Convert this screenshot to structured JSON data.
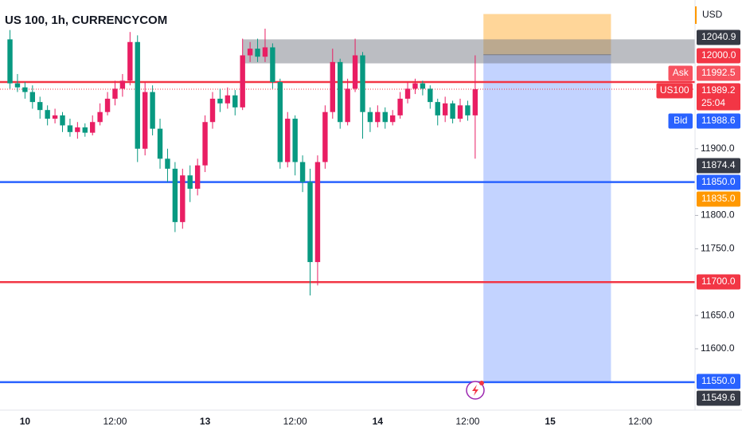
{
  "chart_data": {
    "type": "candlestick",
    "title": "US 100, 1h, CURRENCYCOM",
    "currency": "USD",
    "open": [
      12064,
      11998,
      11992,
      11985,
      11970,
      11958,
      11945,
      11950,
      11935,
      11925,
      11932,
      11924,
      11940,
      11955,
      11975,
      11990,
      12002,
      12060,
      11900,
      11985,
      11930,
      11885,
      11870,
      11790,
      11860,
      11840,
      11875,
      11940,
      11975,
      11968,
      11980,
      11962,
      12040,
      12050,
      12038,
      12052,
      12000,
      11880,
      11945,
      11880,
      11850,
      11730,
      11880,
      11955,
      12030,
      11940,
      11990,
      12040,
      11955,
      11940,
      11955,
      11940,
      11950,
      11975,
      11990,
      11998,
      11990,
      11970,
      11950,
      11968,
      11945,
      11965,
      11950
    ],
    "high": [
      12078,
      12012,
      12000,
      11995,
      11978,
      11965,
      11960,
      11955,
      11945,
      11940,
      11938,
      11950,
      11968,
      11985,
      12002,
      12012,
      12075,
      12070,
      12000,
      11995,
      11945,
      11900,
      11880,
      11870,
      11875,
      11885,
      11950,
      11985,
      11990,
      11992,
      11988,
      12065,
      12060,
      12065,
      12080,
      12058,
      12005,
      11955,
      11950,
      11890,
      11870,
      11890,
      11965,
      12050,
      12035,
      12005,
      12065,
      12045,
      11962,
      11965,
      11962,
      11958,
      11985,
      12000,
      12005,
      12002,
      11995,
      11975,
      11978,
      11972,
      11975,
      11972,
      12040
    ],
    "low": [
      11990,
      11985,
      11975,
      11960,
      11945,
      11935,
      11938,
      11925,
      11918,
      11915,
      11918,
      11920,
      11935,
      11950,
      11965,
      11978,
      11995,
      11880,
      11890,
      11920,
      11870,
      11850,
      11775,
      11780,
      11820,
      11830,
      11865,
      11930,
      11955,
      11960,
      11950,
      11958,
      12030,
      12030,
      12030,
      11990,
      11870,
      11872,
      11860,
      11835,
      11680,
      11695,
      11870,
      11945,
      11930,
      11935,
      11985,
      11915,
      11925,
      11932,
      11930,
      11935,
      11945,
      11968,
      11982,
      11980,
      11960,
      11935,
      11940,
      11938,
      11940,
      11942,
      11885
    ],
    "close": [
      11998,
      11992,
      11985,
      11970,
      11958,
      11945,
      11950,
      11935,
      11925,
      11932,
      11924,
      11940,
      11955,
      11975,
      11990,
      12002,
      12060,
      11900,
      11985,
      11930,
      11885,
      11870,
      11790,
      11860,
      11840,
      11875,
      11940,
      11975,
      11968,
      11980,
      11962,
      12040,
      12050,
      12038,
      12052,
      12000,
      11880,
      11945,
      11880,
      11850,
      11730,
      11880,
      11955,
      12030,
      11940,
      11990,
      12040,
      11955,
      11940,
      11955,
      11940,
      11950,
      11975,
      11990,
      11998,
      11990,
      11970,
      11950,
      11968,
      11945,
      11965,
      11950,
      11989.2
    ],
    "up_color": "#e91e63",
    "down_color": "#089981",
    "xlim": [
      -1.33,
      91.3
    ],
    "ylim": [
      11508,
      12123
    ],
    "xticks": [
      {
        "value": 2,
        "label": "10"
      },
      {
        "value": 14,
        "label": "12:00"
      },
      {
        "value": 26,
        "label": "13"
      },
      {
        "value": 38,
        "label": "12:00"
      },
      {
        "value": 49,
        "label": "14"
      },
      {
        "value": 61,
        "label": "12:00"
      },
      {
        "value": 72,
        "label": "15"
      },
      {
        "value": 84,
        "label": "12:00"
      }
    ],
    "yticks": [
      {
        "value": 11900,
        "label": "11900.0"
      },
      {
        "value": 11800,
        "label": "11800.0"
      },
      {
        "value": 11750,
        "label": "11750.0"
      },
      {
        "value": 11650,
        "label": "11650.0"
      },
      {
        "value": 11600,
        "label": "11600.0"
      }
    ],
    "horizontal_lines": [
      {
        "value": 12000,
        "color": "#f23645"
      },
      {
        "value": 11850,
        "color": "#2962ff"
      },
      {
        "value": 11700,
        "color": "#f23645"
      },
      {
        "value": 11550,
        "color": "#2962ff"
      }
    ],
    "zone": {
      "low": 12028,
      "high": 12064,
      "x_start": 31
    },
    "position": {
      "x_start": 63.1,
      "x_end": 80.1,
      "entry": 12040.9,
      "stop": 12102,
      "target": 11550
    },
    "price_line": 11989.2,
    "price_tags": [
      {
        "value": 12040.9,
        "label": "12040.9",
        "color": "#363a45"
      },
      {
        "value": 12000,
        "label": "12000.0",
        "color": "#f23645"
      },
      {
        "name": "Ask",
        "value": 11992.5,
        "label": "11992.5",
        "color": "#f7525f"
      },
      {
        "name": "US100",
        "value": 11989.2,
        "label": "11989.2",
        "countdown": "25:04",
        "color": "#f23645"
      },
      {
        "name": "Bid",
        "value": 11988.6,
        "label": "11988.6",
        "color": "#2962ff"
      },
      {
        "value": 11874.4,
        "label": "11874.4",
        "color": "#363a45"
      },
      {
        "value": 11850,
        "label": "11850.0",
        "color": "#2962ff"
      },
      {
        "value": 11835,
        "label": "11835.0",
        "color": "#ff9800"
      },
      {
        "value": 11700,
        "label": "11700.0",
        "color": "#f23645"
      },
      {
        "value": 11550,
        "label": "11550.0",
        "color": "#2962ff"
      },
      {
        "value": 11549.6,
        "label": "11549.6",
        "color": "#363a45"
      }
    ]
  }
}
